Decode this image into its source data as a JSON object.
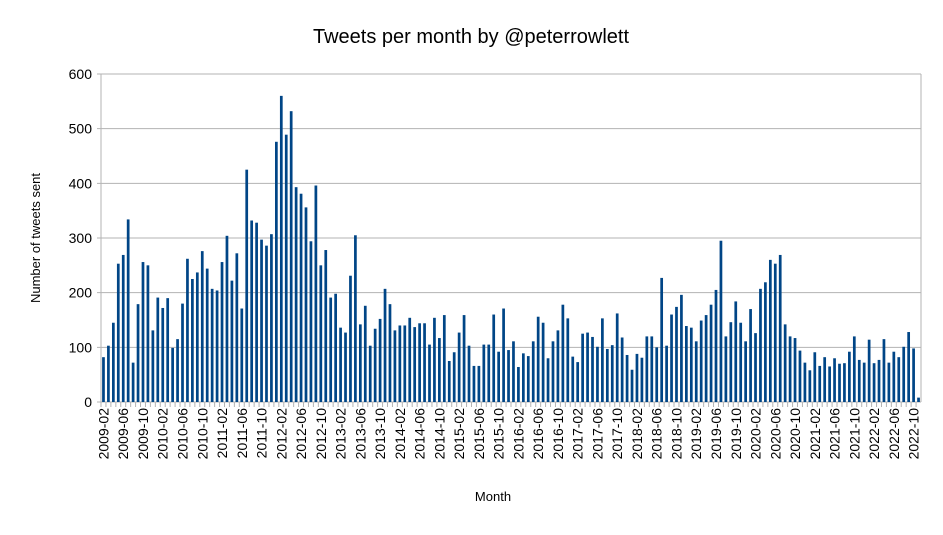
{
  "chart_data": {
    "type": "bar",
    "title": "Tweets per month by @peterrowlett",
    "xlabel": "Month",
    "ylabel": "Number of tweets sent",
    "ylim": [
      0,
      600
    ],
    "yticks": [
      "0",
      "100",
      "200",
      "300",
      "400",
      "500",
      "600"
    ],
    "grid": true,
    "legend": "none",
    "bar_color": "#004586",
    "start_month": "2009-02",
    "tick_every_months": 4,
    "tick_labels": [
      "2009-02",
      "2009-06",
      "2009-10",
      "2010-02",
      "2010-06",
      "2010-10",
      "2011-02",
      "2011-06",
      "2011-10",
      "2012-02",
      "2012-06",
      "2012-10",
      "2013-02",
      "2013-06",
      "2013-10",
      "2014-02",
      "2014-06",
      "2014-10",
      "2015-02",
      "2015-06",
      "2015-10",
      "2016-02",
      "2016-06",
      "2016-10",
      "2017-02",
      "2017-06",
      "2017-10",
      "2018-02",
      "2018-06",
      "2018-10",
      "2019-02",
      "2019-06",
      "2019-10",
      "2020-02",
      "2020-06",
      "2020-10",
      "2021-02",
      "2021-06",
      "2021-10",
      "2022-02",
      "2022-06",
      "2022-10"
    ],
    "values": [
      82,
      103,
      145,
      253,
      269,
      334,
      72,
      179,
      256,
      250,
      131,
      191,
      172,
      190,
      99,
      115,
      180,
      262,
      225,
      237,
      276,
      244,
      207,
      204,
      256,
      304,
      222,
      272,
      171,
      425,
      332,
      328,
      297,
      286,
      307,
      476,
      560,
      489,
      532,
      393,
      381,
      356,
      294,
      396,
      250,
      278,
      191,
      198,
      136,
      127,
      231,
      305,
      142,
      176,
      103,
      134,
      152,
      207,
      179,
      131,
      140,
      140,
      154,
      137,
      144,
      144,
      105,
      154,
      117,
      159,
      75,
      91,
      127,
      159,
      103,
      66,
      66,
      105,
      105,
      160,
      92,
      171,
      95,
      111,
      64,
      89,
      84,
      111,
      156,
      145,
      80,
      111,
      131,
      178,
      153,
      83,
      73,
      125,
      127,
      119,
      101,
      153,
      97,
      104,
      162,
      118,
      86,
      59,
      88,
      81,
      120,
      120,
      100,
      227,
      103,
      160,
      174,
      196,
      139,
      136,
      111,
      149,
      159,
      178,
      205,
      295,
      120,
      146,
      184,
      145,
      111,
      170,
      126,
      207,
      219,
      260,
      253,
      269,
      142,
      120,
      117,
      94,
      72,
      58,
      91,
      66,
      82,
      65,
      80,
      70,
      71,
      92,
      120,
      77,
      72,
      114,
      71,
      77,
      115,
      72,
      92,
      82,
      101,
      128,
      98,
      8
    ]
  }
}
